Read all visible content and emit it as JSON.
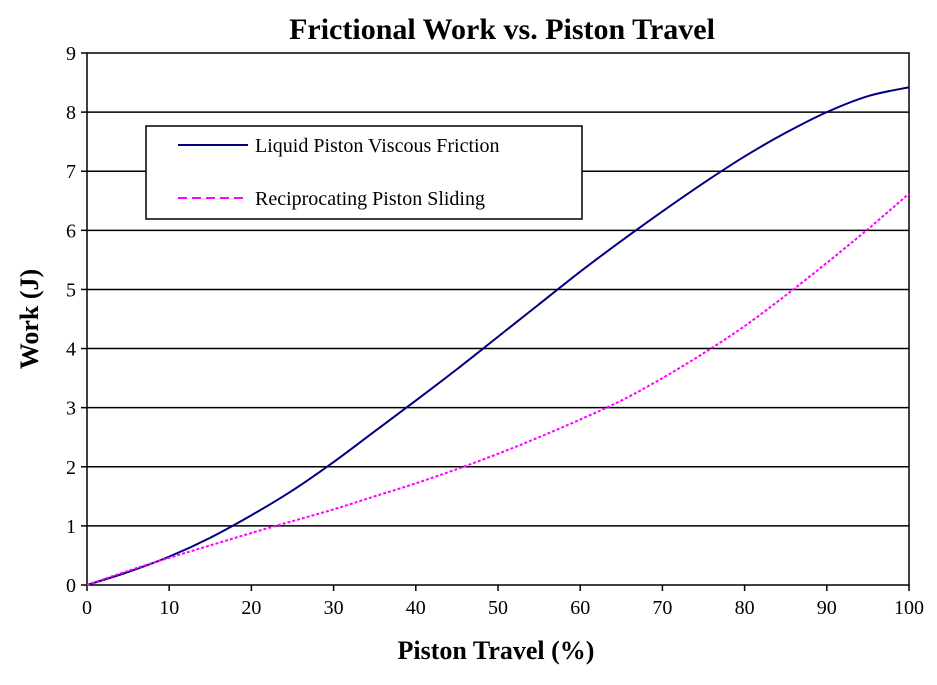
{
  "chart_data": {
    "type": "line",
    "title": "Frictional Work vs. Piston Travel",
    "xlabel": "Piston Travel (%)",
    "ylabel": "Work (J)",
    "xlim": [
      0,
      100
    ],
    "ylim": [
      0,
      9
    ],
    "xticks": [
      0,
      10,
      20,
      30,
      40,
      50,
      60,
      70,
      80,
      90,
      100
    ],
    "yticks": [
      0,
      1,
      2,
      3,
      4,
      5,
      6,
      7,
      8,
      9
    ],
    "grid": "horizontal",
    "legend_position": "upper-left",
    "series": [
      {
        "name": "Liquid Piston Viscous Friction",
        "color": "#000080",
        "style": "solid",
        "x": [
          0,
          5,
          10,
          15,
          20,
          25,
          30,
          35,
          40,
          45,
          50,
          55,
          60,
          65,
          70,
          75,
          80,
          85,
          90,
          95,
          100
        ],
        "y": [
          0,
          0.22,
          0.48,
          0.8,
          1.18,
          1.6,
          2.08,
          2.6,
          3.12,
          3.65,
          4.2,
          4.75,
          5.3,
          5.82,
          6.32,
          6.8,
          7.25,
          7.65,
          8.0,
          8.27,
          8.42
        ]
      },
      {
        "name": "Reciprocating Piston Sliding",
        "color": "#FF00FF",
        "style": "dashed",
        "x": [
          0,
          5,
          10,
          15,
          20,
          25,
          30,
          35,
          40,
          45,
          50,
          55,
          60,
          65,
          70,
          75,
          80,
          85,
          90,
          95,
          100
        ],
        "y": [
          0,
          0.24,
          0.46,
          0.67,
          0.88,
          1.08,
          1.28,
          1.5,
          1.72,
          1.96,
          2.22,
          2.5,
          2.8,
          3.12,
          3.5,
          3.92,
          4.38,
          4.9,
          5.45,
          6.02,
          6.62
        ]
      }
    ]
  }
}
